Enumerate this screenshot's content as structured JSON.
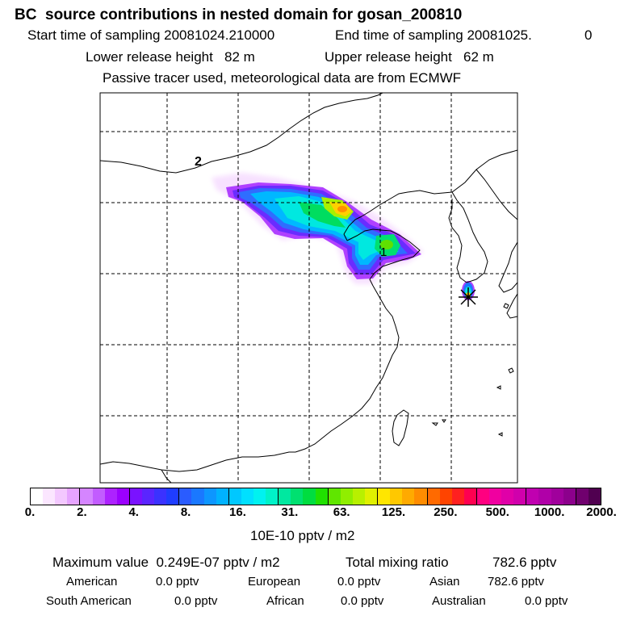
{
  "header": {
    "title": "BC  source contributions in nested domain for gosan_200810",
    "start_label": "Start time of sampling 20081024.210000",
    "end_label": "End time of sampling 20081025.",
    "end_value": "0",
    "lower_release": "Lower release height   82 m",
    "upper_release": "Upper release height   62 m",
    "note": "Passive tracer used, meteorological data are from ECMWF"
  },
  "map": {
    "region_labels": [
      "2",
      "1"
    ]
  },
  "colorbar": {
    "ticks": [
      "0.",
      "2.",
      "4.",
      "8.",
      "16.",
      "31.",
      "63.",
      "125.",
      "250.",
      "500.",
      "1000.",
      "2000."
    ],
    "unit": "10E-10 pptv / m2",
    "colors": [
      "#ffffff",
      "#fbe6ff",
      "#f3c8ff",
      "#e6a4ff",
      "#d585ff",
      "#c25cff",
      "#ad22ff",
      "#9b00ff",
      "#7a12ff",
      "#5a25ff",
      "#3b32ff",
      "#1f3dff",
      "#2a5cff",
      "#1a78ff",
      "#0d96ff",
      "#00b2ff",
      "#00c8ff",
      "#00e0ff",
      "#00f2f0",
      "#00f2c8",
      "#00e8a0",
      "#00e070",
      "#00dd40",
      "#20e000",
      "#60e600",
      "#90ee00",
      "#b8f000",
      "#e0f000",
      "#ffe600",
      "#ffc800",
      "#ffaa00",
      "#ff8c00",
      "#ff6a00",
      "#ff4400",
      "#ff2020",
      "#ff0050",
      "#ff0080",
      "#f000a0",
      "#e000a8",
      "#d000ac",
      "#c000b0",
      "#b000a8",
      "#a0009c",
      "#8c008c",
      "#70006e",
      "#500050"
    ]
  },
  "stats": {
    "max_label": "Maximum value  0.249E-07 pptv / m2",
    "total_label": "Total mixing ratio",
    "total_value": "782.6 pptv",
    "rows": [
      [
        {
          "name": "American",
          "value": "0.0 pptv"
        },
        {
          "name": "European",
          "value": "0.0 pptv"
        },
        {
          "name": "Asian",
          "value": "782.6 pptv"
        }
      ],
      [
        {
          "name": "South American",
          "value": "0.0 pptv"
        },
        {
          "name": "African",
          "value": "0.0 pptv"
        },
        {
          "name": "Australian",
          "value": "0.0 pptv"
        }
      ]
    ]
  }
}
